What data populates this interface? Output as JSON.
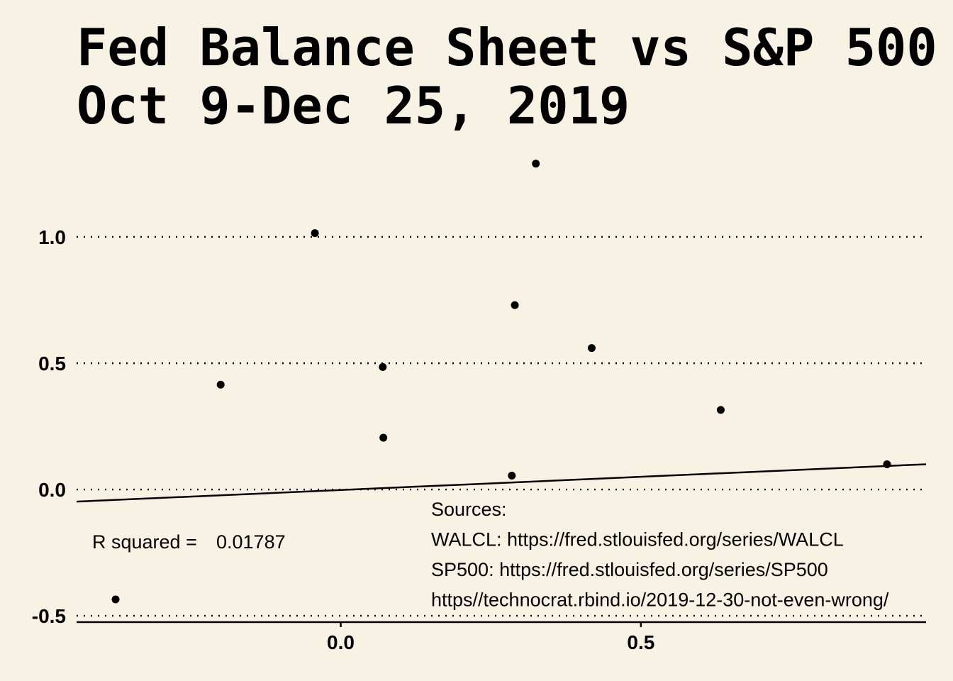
{
  "chart_data": {
    "type": "scatter",
    "title": "Fed Balance Sheet vs S&P 500",
    "subtitle": "Oct 9-Dec 25, 2019",
    "xlabel": "",
    "ylabel": "",
    "xlim": [
      -0.44,
      0.975
    ],
    "ylim": [
      -0.525,
      1.32
    ],
    "x_ticks": [
      0.0,
      0.5
    ],
    "x_tick_labels": [
      "0.0",
      "0.5"
    ],
    "y_ticks": [
      -0.5,
      0.0,
      0.5,
      1.0
    ],
    "y_tick_labels": [
      "-0.5",
      "0.0",
      "0.5",
      "1.0"
    ],
    "grid": "horizontal dotted",
    "points": [
      {
        "x": -0.375,
        "y": -0.435
      },
      {
        "x": -0.2,
        "y": 0.415
      },
      {
        "x": -0.043,
        "y": 1.015
      },
      {
        "x": 0.07,
        "y": 0.485
      },
      {
        "x": 0.071,
        "y": 0.205
      },
      {
        "x": 0.285,
        "y": 0.055
      },
      {
        "x": 0.29,
        "y": 0.73
      },
      {
        "x": 0.325,
        "y": 1.29
      },
      {
        "x": 0.418,
        "y": 0.56
      },
      {
        "x": 0.633,
        "y": 0.315
      },
      {
        "x": 0.91,
        "y": 0.1
      }
    ],
    "trend_line": [
      {
        "x": -0.44,
        "y": -0.048
      },
      {
        "x": 0.975,
        "y": 0.1
      }
    ],
    "annotations": {
      "r_squared_label": "R squared =",
      "r_squared_value": "0.01787",
      "sources": [
        "Sources:",
        "WALCL: https://fred.stlouisfed.org/series/WALCL",
        "SP500: https://fred.stlouisfed.org/series/SP500",
        "https//technocrat.rbind.io/2019-12-30-not-even-wrong/"
      ]
    },
    "colors": {
      "background": "#f7f2e4",
      "foreground": "#000000"
    }
  }
}
